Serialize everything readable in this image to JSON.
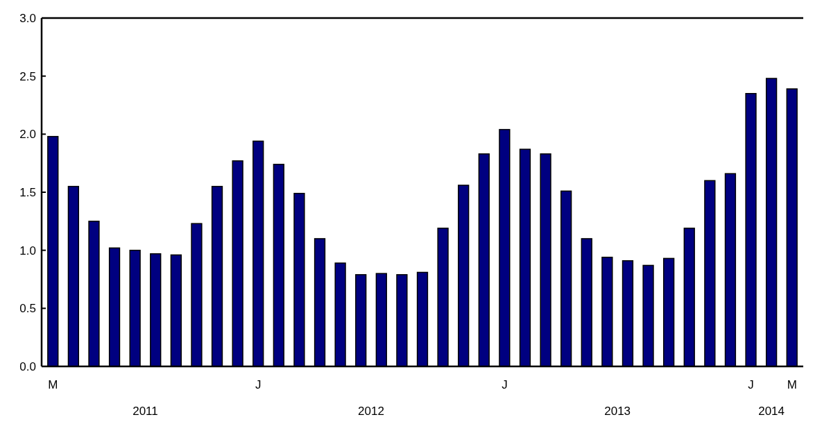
{
  "chart_data": {
    "type": "bar",
    "categories": [
      "M",
      null,
      null,
      null,
      null,
      null,
      null,
      null,
      null,
      null,
      "J",
      null,
      null,
      null,
      null,
      null,
      null,
      null,
      null,
      null,
      null,
      null,
      "J",
      null,
      null,
      null,
      null,
      null,
      null,
      null,
      null,
      null,
      null,
      null,
      "J",
      null,
      "M"
    ],
    "values": [
      1.98,
      1.55,
      1.25,
      1.02,
      1.0,
      0.97,
      0.96,
      1.23,
      1.55,
      1.77,
      1.94,
      1.74,
      1.49,
      1.1,
      0.89,
      0.79,
      0.8,
      0.79,
      0.81,
      1.19,
      1.56,
      1.83,
      2.04,
      1.87,
      1.83,
      1.51,
      1.1,
      0.94,
      0.91,
      0.87,
      0.93,
      1.19,
      1.6,
      1.66,
      2.35,
      2.48,
      2.39
    ],
    "color": "#000080",
    "ylim": [
      0,
      3
    ],
    "yticks": [
      {
        "value": 0,
        "label": "0.0"
      },
      {
        "value": 0.5,
        "label": "0.5"
      },
      {
        "value": 1,
        "label": "1.0"
      },
      {
        "value": 1.5,
        "label": "1.5"
      },
      {
        "value": 2,
        "label": "2.0"
      },
      {
        "value": 2.5,
        "label": "2.5"
      },
      {
        "value": 3,
        "label": "3.0"
      }
    ],
    "annotations": [
      "2011",
      "2012",
      "2013",
      "2014"
    ],
    "grid": false
  }
}
